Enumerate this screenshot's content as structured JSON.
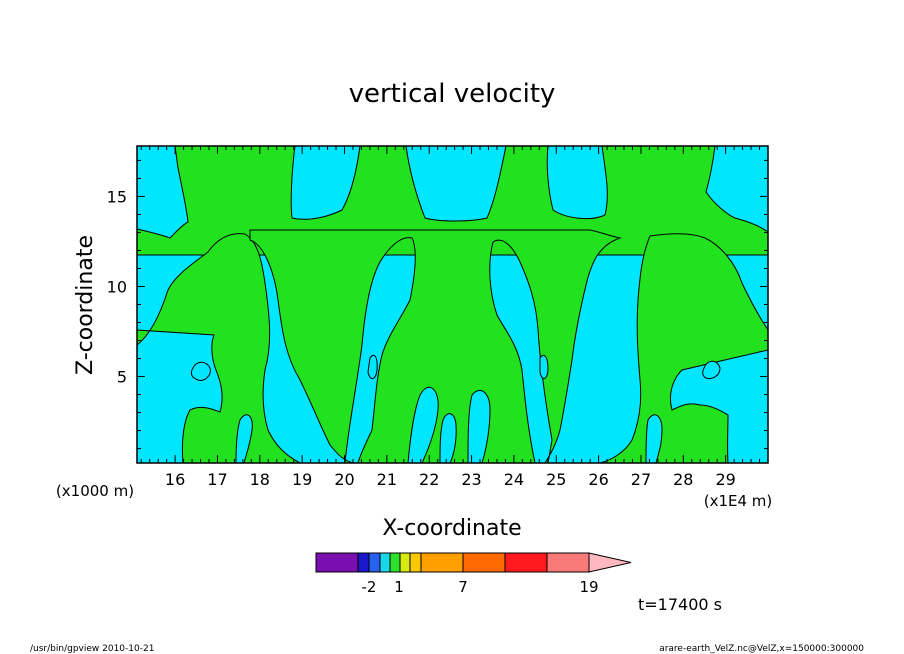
{
  "chart_data": {
    "type": "heatmap",
    "title": "vertical velocity",
    "xlabel": "X-coordinate",
    "ylabel": "Z-coordinate",
    "x_unit_label": "(x1E4 m)",
    "y_unit_label": "(x1000 m)",
    "xlim": [
      15.1,
      30.0
    ],
    "ylim": [
      0.2,
      17.8
    ],
    "x_ticks": [
      16,
      17,
      18,
      19,
      20,
      21,
      22,
      23,
      24,
      25,
      26,
      27,
      28,
      29
    ],
    "y_ticks": [
      5,
      10,
      15
    ],
    "colorbar": {
      "colors": [
        "#7a0fb0",
        "#1a18c8",
        "#2860f0",
        "#17d8e8",
        "#2ce02c",
        "#d8ea10",
        "#f8c800",
        "#ffa000",
        "#ff6a00",
        "#ff1a20",
        "#fa7a7a",
        "#ffb8c0"
      ],
      "tick_labels": [
        "-2",
        "1",
        "7",
        "19"
      ]
    },
    "field_colors": {
      "positive": "#22e11e",
      "negative": "#00e6ff"
    },
    "time_label": "t=17400 s"
  },
  "footer": {
    "program": "/usr/bin/gpview  2010-10-21",
    "source": "arare-earth_VelZ.nc@VelZ,x=150000:300000"
  }
}
